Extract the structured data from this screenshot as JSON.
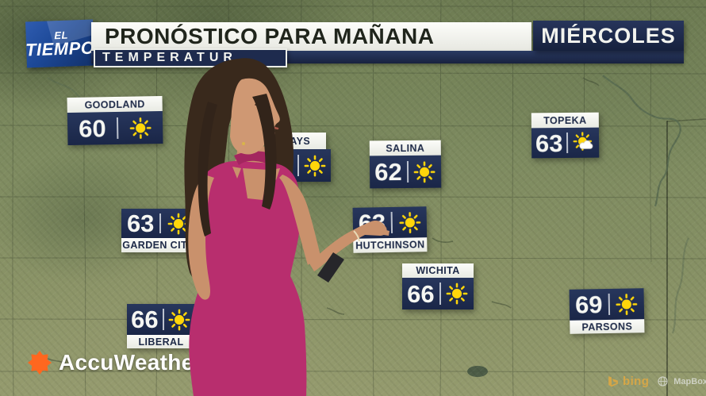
{
  "header": {
    "logo": {
      "top": "EL",
      "bottom": "TIEMPO"
    },
    "title": "PRONÓSTICO PARA MAÑANA",
    "subtitle": "TEMPERATUR",
    "day": "MIÉRCOLES"
  },
  "map": {
    "labels": [
      {
        "city": "GOODLAND",
        "temp": "60",
        "condition": "sunny"
      },
      {
        "city": "HAYS",
        "temp": "60",
        "condition": "sunny"
      },
      {
        "city": "SALINA",
        "temp": "62",
        "condition": "sunny"
      },
      {
        "city": "TOPEKA",
        "temp": "63",
        "condition": "partly-cloudy"
      },
      {
        "city": "GARDEN CITY",
        "temp": "63",
        "condition": "sunny"
      },
      {
        "city": "HUTCHINSON",
        "temp": "63",
        "condition": "sunny"
      },
      {
        "city": "WICHITA",
        "temp": "66",
        "condition": "sunny"
      },
      {
        "city": "LIBERAL",
        "temp": "66",
        "condition": "sunny"
      },
      {
        "city": "PARSONS",
        "temp": "69",
        "condition": "sunny"
      }
    ]
  },
  "branding": {
    "accuweather": "AccuWeather",
    "bing": "bing",
    "mapbox": "MapBox"
  },
  "colors": {
    "label_navy": "#1e2b4e",
    "panel_white": "#f2f3ee",
    "sun_yellow": "#ffd60a",
    "logo_blue": "#1c4896",
    "accuweather_orange": "#ff671f",
    "bing_gold": "#dda843",
    "dress_magenta": "#b82e6e"
  }
}
